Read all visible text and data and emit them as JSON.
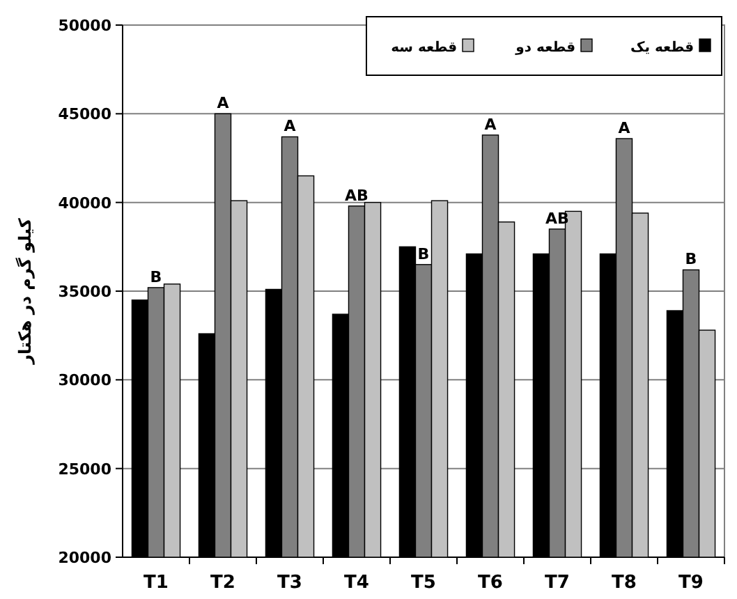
{
  "chart_data": {
    "type": "bar",
    "ylabel": "کیلو گرم در هکتار",
    "categories": [
      "T1",
      "T2",
      "T3",
      "T4",
      "T5",
      "T6",
      "T7",
      "T8",
      "T9"
    ],
    "series": [
      {
        "name": "قطعه یک",
        "color": "#000000",
        "values": [
          34500,
          32600,
          35100,
          33700,
          37500,
          37100,
          37100,
          37100,
          33900
        ]
      },
      {
        "name": "قطعه دو",
        "color": "#808080",
        "values": [
          35200,
          45000,
          43700,
          39800,
          36500,
          43800,
          38500,
          43600,
          36200
        ]
      },
      {
        "name": "قطعه سه",
        "color": "#c0c0c0",
        "values": [
          35400,
          40100,
          41500,
          40000,
          40100,
          38900,
          39500,
          39400,
          32800
        ]
      }
    ],
    "ylim": [
      20000,
      50000
    ],
    "yticks": [
      20000,
      25000,
      30000,
      35000,
      40000,
      45000,
      50000
    ],
    "grid": "y",
    "legend": "top right",
    "annotations": [
      {
        "text": "B",
        "x": "T1",
        "y": 35200
      },
      {
        "text": "A",
        "x": "T2",
        "y": 45000
      },
      {
        "text": "A",
        "x": "T3",
        "y": 43700
      },
      {
        "text": "AB",
        "x": "T4",
        "y": 39800
      },
      {
        "text": "B",
        "x": "T5",
        "y": 36500
      },
      {
        "text": "A",
        "x": "T6",
        "y": 43800
      },
      {
        "text": "AB",
        "x": "T7",
        "y": 38500
      },
      {
        "text": "A",
        "x": "T8",
        "y": 43600
      },
      {
        "text": "B",
        "x": "T9",
        "y": 36200
      }
    ]
  }
}
